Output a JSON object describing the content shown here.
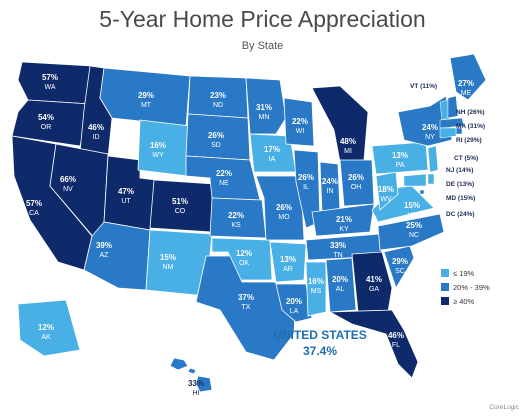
{
  "title": "5-Year Home Price Appreciation",
  "subtitle": "By State",
  "colors": {
    "low": "#49b0e6",
    "mid": "#2a79c6",
    "high": "#0f2a6a",
    "label_light": "#ffffff",
    "label_dark": "#1e2a55",
    "accent": "#1f6fb0"
  },
  "legend": [
    {
      "label": "≤ 19%",
      "class": "low"
    },
    {
      "label": "20% - 39%",
      "class": "mid"
    },
    {
      "label": "≥ 40%",
      "class": "high"
    }
  ],
  "national": {
    "name": "UNITED STATES",
    "value": "37.4%"
  },
  "source": "CoreLogic",
  "states": [
    {
      "abbr": "WA",
      "pct": "57%",
      "class": "high"
    },
    {
      "abbr": "OR",
      "pct": "54%",
      "class": "high"
    },
    {
      "abbr": "CA",
      "pct": "57%",
      "class": "high"
    },
    {
      "abbr": "ID",
      "pct": "46%",
      "class": "high"
    },
    {
      "abbr": "NV",
      "pct": "66%",
      "class": "high"
    },
    {
      "abbr": "UT",
      "pct": "47%",
      "class": "high"
    },
    {
      "abbr": "AZ",
      "pct": "39%",
      "class": "mid"
    },
    {
      "abbr": "MT",
      "pct": "29%",
      "class": "mid"
    },
    {
      "abbr": "WY",
      "pct": "16%",
      "class": "low"
    },
    {
      "abbr": "CO",
      "pct": "51%",
      "class": "high"
    },
    {
      "abbr": "NM",
      "pct": "15%",
      "class": "low"
    },
    {
      "abbr": "ND",
      "pct": "23%",
      "class": "mid"
    },
    {
      "abbr": "SD",
      "pct": "26%",
      "class": "mid"
    },
    {
      "abbr": "NE",
      "pct": "22%",
      "class": "mid"
    },
    {
      "abbr": "KS",
      "pct": "22%",
      "class": "mid"
    },
    {
      "abbr": "OK",
      "pct": "12%",
      "class": "low"
    },
    {
      "abbr": "TX",
      "pct": "37%",
      "class": "mid"
    },
    {
      "abbr": "MN",
      "pct": "31%",
      "class": "mid"
    },
    {
      "abbr": "IA",
      "pct": "17%",
      "class": "low"
    },
    {
      "abbr": "MO",
      "pct": "26%",
      "class": "mid"
    },
    {
      "abbr": "AR",
      "pct": "13%",
      "class": "low"
    },
    {
      "abbr": "LA",
      "pct": "20%",
      "class": "mid"
    },
    {
      "abbr": "WI",
      "pct": "22%",
      "class": "mid"
    },
    {
      "abbr": "IL",
      "pct": "26%",
      "class": "mid"
    },
    {
      "abbr": "MI",
      "pct": "48%",
      "class": "high"
    },
    {
      "abbr": "IN",
      "pct": "24%",
      "class": "mid"
    },
    {
      "abbr": "OH",
      "pct": "26%",
      "class": "mid"
    },
    {
      "abbr": "KY",
      "pct": "21%",
      "class": "mid"
    },
    {
      "abbr": "TN",
      "pct": "33%",
      "class": "mid"
    },
    {
      "abbr": "MS",
      "pct": "16%",
      "class": "low"
    },
    {
      "abbr": "AL",
      "pct": "20%",
      "class": "mid"
    },
    {
      "abbr": "GA",
      "pct": "41%",
      "class": "high"
    },
    {
      "abbr": "FL",
      "pct": "46%",
      "class": "high"
    },
    {
      "abbr": "SC",
      "pct": "29%",
      "class": "mid"
    },
    {
      "abbr": "NC",
      "pct": "25%",
      "class": "mid"
    },
    {
      "abbr": "VA",
      "pct": "15%",
      "class": "low"
    },
    {
      "abbr": "WV",
      "pct": "18%",
      "class": "low"
    },
    {
      "abbr": "PA",
      "pct": "13%",
      "class": "low"
    },
    {
      "abbr": "NY",
      "pct": "24%",
      "class": "mid"
    },
    {
      "abbr": "ME",
      "pct": "27%",
      "class": "mid"
    },
    {
      "abbr": "AK",
      "pct": "12%",
      "class": "low"
    },
    {
      "abbr": "HI",
      "pct": "33%",
      "class": "mid"
    }
  ],
  "callouts": [
    {
      "abbr": "VT",
      "pct": "11%",
      "text": "VT (11%)",
      "class": "low"
    },
    {
      "abbr": "NH",
      "pct": "26%",
      "text": "NH (26%)",
      "class": "mid"
    },
    {
      "abbr": "MA",
      "pct": "31%",
      "text": "MA (31%)",
      "class": "mid"
    },
    {
      "abbr": "RI",
      "pct": "29%",
      "text": "RI (29%)",
      "class": "mid"
    },
    {
      "abbr": "CT",
      "pct": "5%",
      "text": "CT (5%)",
      "class": "low"
    },
    {
      "abbr": "NJ",
      "pct": "14%",
      "text": "NJ (14%)",
      "class": "low"
    },
    {
      "abbr": "DE",
      "pct": "13%",
      "text": "DE (13%)",
      "class": "low"
    },
    {
      "abbr": "MD",
      "pct": "15%",
      "text": "MD (15%)",
      "class": "low"
    },
    {
      "abbr": "DC",
      "pct": "24%",
      "text": "DC (24%)",
      "class": "mid"
    }
  ]
}
